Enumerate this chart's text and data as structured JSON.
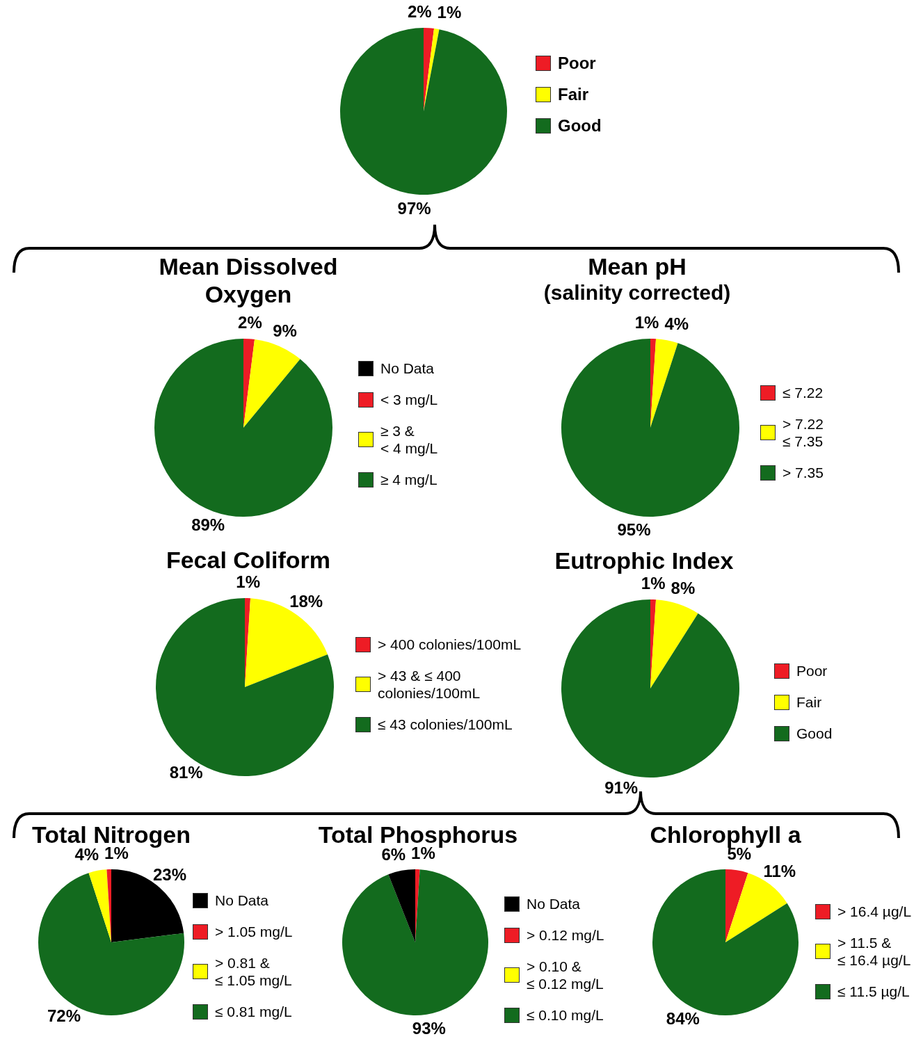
{
  "chart_data": [
    {
      "type": "pie",
      "categories": [
        "Poor",
        "Fair",
        "Good"
      ],
      "values": [
        2,
        1,
        97
      ],
      "colors": [
        "#ee1c25",
        "#ffff00",
        "#136b1e"
      ],
      "value_labels": [
        "2%",
        "1%",
        "97%"
      ],
      "legend": "right"
    },
    {
      "type": "pie",
      "title": "Mean Dissolved Oxygen",
      "categories": [
        "No Data",
        "< 3 mg/L",
        "≥ 3 &\n< 4 mg/L",
        "≥ 4 mg/L"
      ],
      "values": [
        0,
        2,
        9,
        89
      ],
      "colors": [
        "#000000",
        "#ee1c25",
        "#ffff00",
        "#136b1e"
      ],
      "value_labels": [
        null,
        "2%",
        "9%",
        "89%"
      ],
      "legend": "right"
    },
    {
      "type": "pie",
      "title": "Mean pH",
      "subtitle": "(salinity corrected)",
      "categories": [
        "≤ 7.22",
        "> 7.22\n≤ 7.35",
        "> 7.35"
      ],
      "values": [
        1,
        4,
        95
      ],
      "colors": [
        "#ee1c25",
        "#ffff00",
        "#136b1e"
      ],
      "value_labels": [
        "1%",
        "4%",
        "95%"
      ],
      "legend": "right"
    },
    {
      "type": "pie",
      "title": "Fecal Coliform",
      "categories": [
        "> 400 colonies/100mL",
        "> 43 & ≤ 400\ncolonies/100mL",
        "≤ 43 colonies/100mL"
      ],
      "values": [
        1,
        18,
        81
      ],
      "colors": [
        "#ee1c25",
        "#ffff00",
        "#136b1e"
      ],
      "value_labels": [
        "1%",
        "18%",
        "81%"
      ],
      "legend": "right"
    },
    {
      "type": "pie",
      "title": "Eutrophic Index",
      "categories": [
        "Poor",
        "Fair",
        "Good"
      ],
      "values": [
        1,
        8,
        91
      ],
      "colors": [
        "#ee1c25",
        "#ffff00",
        "#136b1e"
      ],
      "value_labels": [
        "1%",
        "8%",
        "91%"
      ],
      "legend": "right"
    },
    {
      "type": "pie",
      "title": "Total Nitrogen",
      "categories": [
        "No Data",
        "> 1.05 mg/L",
        "> 0.81 &\n≤ 1.05 mg/L",
        "≤ 0.81 mg/L"
      ],
      "values": [
        23,
        1,
        4,
        72
      ],
      "colors": [
        "#000000",
        "#ee1c25",
        "#ffff00",
        "#136b1e"
      ],
      "value_labels": [
        "23%",
        "1%",
        "4%",
        "72%"
      ],
      "legend": "right"
    },
    {
      "type": "pie",
      "title": "Total Phosphorus",
      "categories": [
        "No Data",
        "> 0.12 mg/L",
        "> 0.10 &\n≤ 0.12 mg/L",
        "≤ 0.10 mg/L"
      ],
      "values": [
        6,
        1,
        0,
        93
      ],
      "colors": [
        "#000000",
        "#ee1c25",
        "#ffff00",
        "#136b1e"
      ],
      "value_labels": [
        "6%",
        "1%",
        null,
        "93%"
      ],
      "legend": "right"
    },
    {
      "type": "pie",
      "title": "Chlorophyll a",
      "categories": [
        "> 16.4 µg/L",
        "> 11.5 &\n≤ 16.4 µg/L",
        "≤ 11.5 µg/L"
      ],
      "values": [
        5,
        11,
        84
      ],
      "colors": [
        "#ee1c25",
        "#ffff00",
        "#136b1e"
      ],
      "value_labels": [
        "5%",
        "11%",
        "84%"
      ],
      "legend": "right"
    }
  ]
}
